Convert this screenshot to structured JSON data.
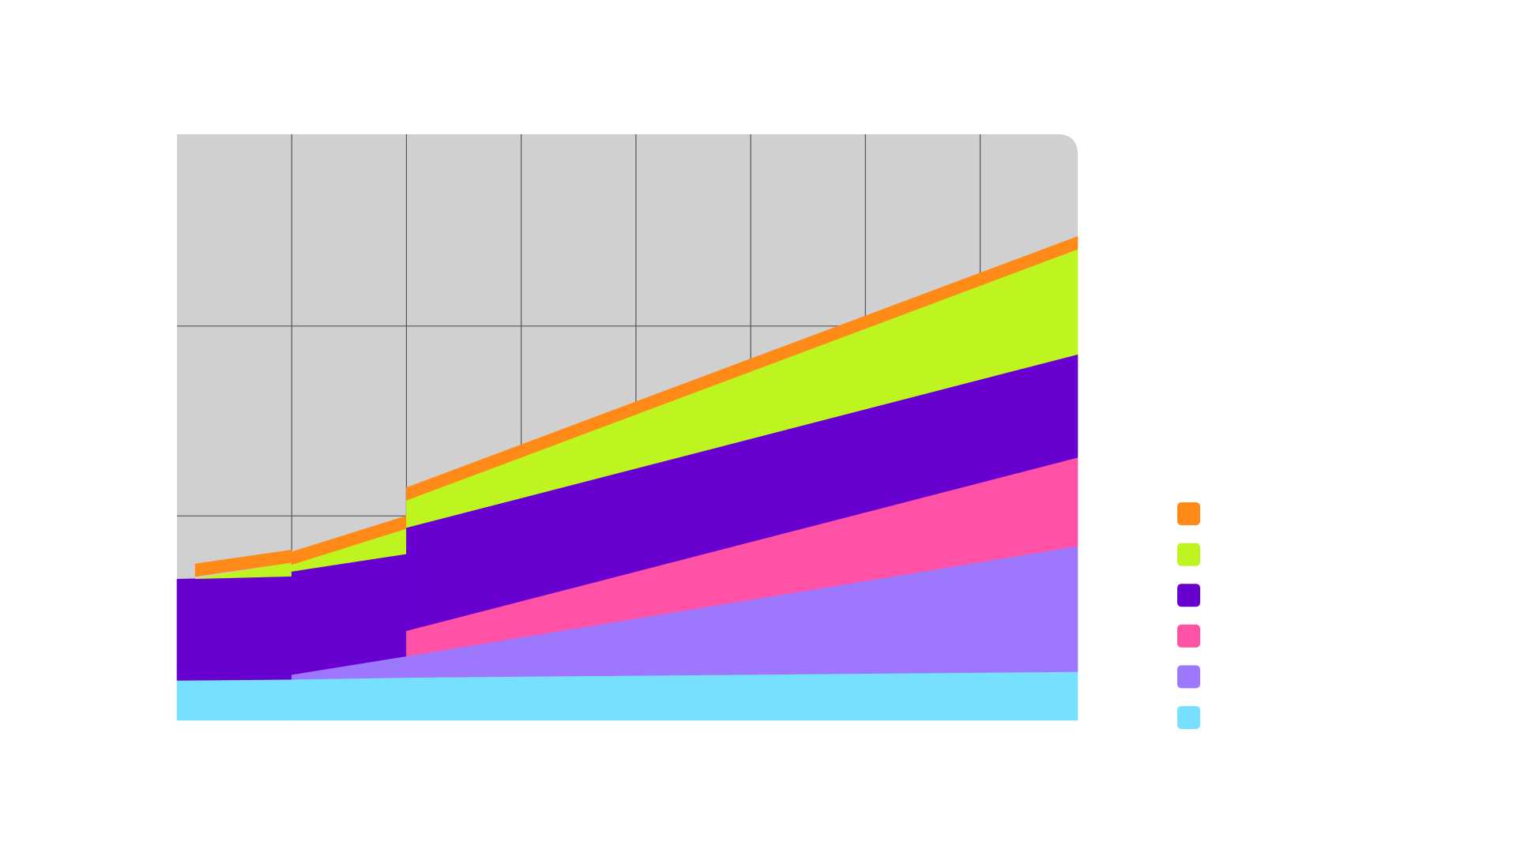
{
  "chart_data": {
    "type": "area",
    "stacked": true,
    "title": "",
    "xlabel": "",
    "ylabel": "",
    "xlim": [
      0,
      7.85
    ],
    "ylim": [
      0,
      60.2
    ],
    "grid": true,
    "y_gridlines": [
      21,
      40.5
    ],
    "x_gridlines": [
      1,
      2,
      3,
      4,
      5,
      6,
      7
    ],
    "legend_placement": "right",
    "plot_background": "#d0d0d0",
    "grid_color": "#555555",
    "intervals": [
      [
        0,
        1
      ],
      [
        1,
        2
      ],
      [
        2,
        7.85
      ]
    ],
    "series": [
      {
        "color": "#78e0ff",
        "segments": [
          [
            4.1,
            4.2
          ],
          [
            4.2,
            4.4
          ],
          [
            4.4,
            5.0
          ]
        ]
      },
      {
        "color": "#9d78ff",
        "segments": [
          null,
          [
            0.5,
            2.2
          ],
          [
            2.2,
            12.9
          ]
        ]
      },
      {
        "color": "#ff52a6",
        "segments": [
          null,
          null,
          [
            2.6,
            9.1
          ]
        ]
      },
      {
        "color": "#6800d0",
        "segments": [
          [
            10.4,
            10.6
          ],
          [
            10.6,
            10.5
          ],
          [
            10.6,
            10.6
          ]
        ]
      },
      {
        "color": "#bef520",
        "segments": [
          [
            0,
            1.4
          ],
          [
            0.7,
            2.6
          ],
          [
            2.8,
            10.8
          ]
        ],
        "start_x": 0.16
      },
      {
        "color": "#ff8a18",
        "segments": [
          [
            1.3,
            1.3
          ],
          [
            1.3,
            1.3
          ],
          [
            1.3,
            1.3
          ]
        ],
        "start_x": 0.16
      }
    ],
    "legend_order": [
      "#ff8a18",
      "#bef520",
      "#6800d0",
      "#ff52a6",
      "#9d78ff",
      "#78e0ff"
    ]
  }
}
